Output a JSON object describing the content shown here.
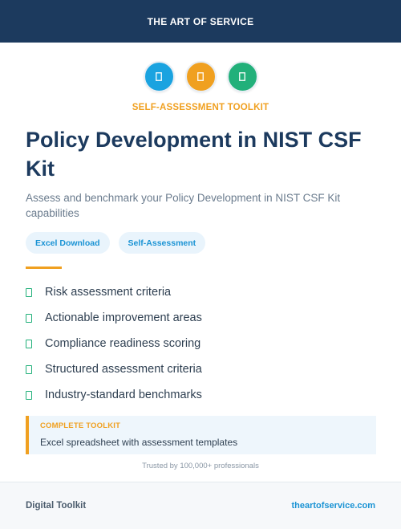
{
  "header": {
    "title": "THE ART OF SERVICE"
  },
  "icons": [
    {
      "name": "blue",
      "color": "#1aa3e0"
    },
    {
      "name": "orange",
      "color": "#f0a020"
    },
    {
      "name": "green",
      "color": "#22b07a"
    }
  ],
  "eyebrow": "SELF-ASSESSMENT TOOLKIT",
  "title": "Policy Development in NIST CSF Kit",
  "subtitle": "Assess and benchmark your Policy Development in NIST CSF Kit capabilities",
  "tags": [
    "Excel Download",
    "Self-Assessment"
  ],
  "features": [
    "Risk assessment criteria",
    "Actionable improvement areas",
    "Compliance readiness scoring",
    "Structured assessment criteria",
    "Industry-standard benchmarks"
  ],
  "toolkit": {
    "label": "COMPLETE TOOLKIT",
    "description": "Excel spreadsheet with assessment templates"
  },
  "trusted": "Trusted by 100,000+ professionals",
  "footer": {
    "left": "Digital Toolkit",
    "right": "theartofservice.com"
  }
}
